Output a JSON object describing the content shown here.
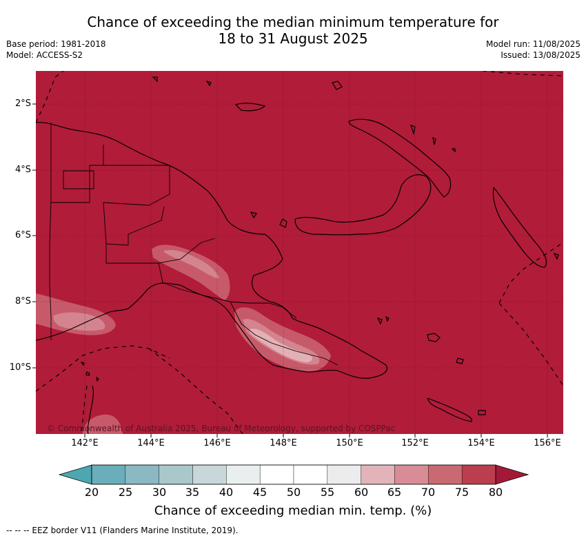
{
  "title_line1": "Chance of exceeding the median minimum temperature for",
  "title_line2": "18 to 31 August 2025",
  "base_period": "Base period: 1981-2018",
  "model": "Model: ACCESS-S2",
  "model_run": "Model run: 11/08/2025",
  "issued": "Issued: 13/08/2025",
  "credit": "© Commonwealth of Australia 2025, Bureau of Meteorology, supported by COSPPac",
  "latitude_labels": [
    "2°S",
    "4°S",
    "6°S",
    "8°S",
    "10°S"
  ],
  "longitude_labels": [
    "142°E",
    "144°E",
    "146°E",
    "148°E",
    "150°E",
    "152°E",
    "154°E",
    "156°E"
  ],
  "colorbar": {
    "title": "Chance of exceeding median min. temp. (%)",
    "ticks": [
      "20",
      "25",
      "30",
      "35",
      "40",
      "45",
      "50",
      "55",
      "60",
      "65",
      "70",
      "75",
      "80"
    ],
    "colors": [
      "#6aaebb",
      "#8ab8c3",
      "#a9c8cc",
      "#c7d7da",
      "#e9eeef",
      "#ffffff",
      "#ffffff",
      "#ececec",
      "#e2b4b9",
      "#d88d96",
      "#ca6972",
      "#bb3e4f"
    ],
    "under_color": "#4da6b0",
    "over_color": "#a31a38"
  },
  "eez_note": "--  --  -- EEZ border V11 (Flanders Marine Institute, 2019).",
  "colors": {
    "base_fill": "#b11c39",
    "anomaly_light": "#c75a6a",
    "anomaly_lighter": "#d4848e",
    "anomaly_lightest": "#e3b0b6"
  }
}
